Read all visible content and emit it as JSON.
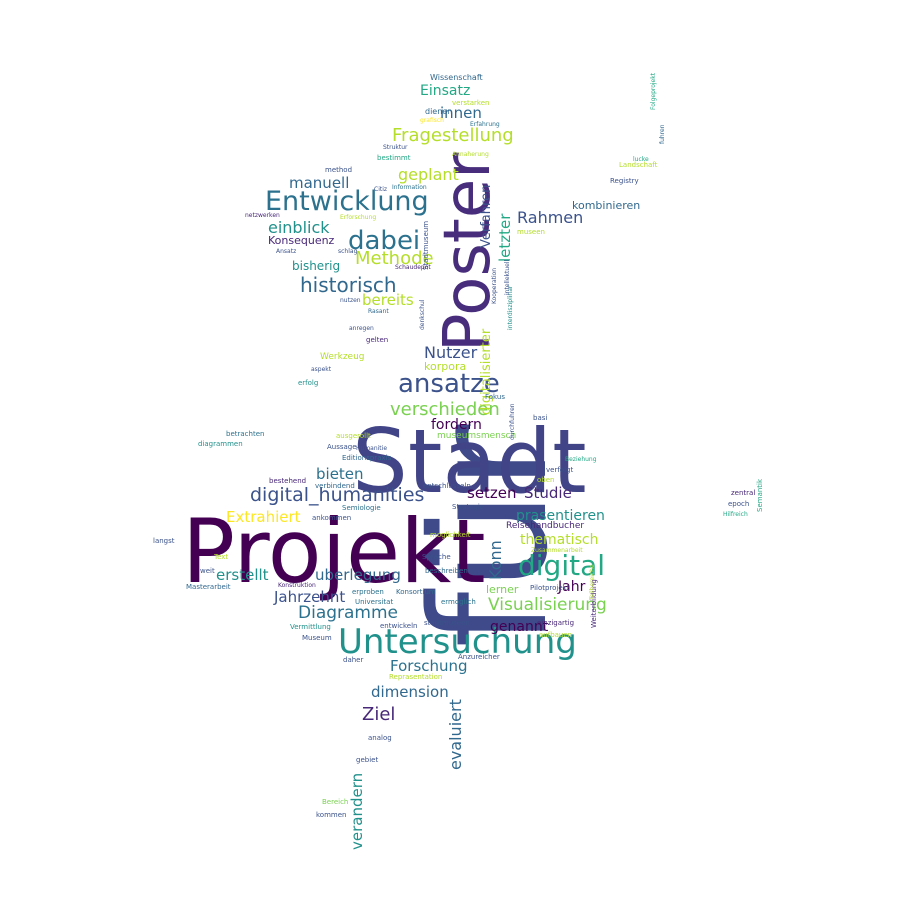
{
  "words": [
    {
      "text": "für",
      "color": "#3e4a89"
    },
    {
      "text": "Stadt",
      "color": "#414487"
    },
    {
      "text": "Projekt",
      "color": "#440154"
    },
    {
      "text": "Poster",
      "color": "#472d7b"
    },
    {
      "text": "Untersuchung",
      "color": "#21918c"
    },
    {
      "text": "Entwicklung",
      "color": "#2c728e"
    },
    {
      "text": "digital",
      "color": "#22a884"
    },
    {
      "text": "ansatze",
      "color": "#3b528b"
    },
    {
      "text": "dabei",
      "color": "#2c728e"
    },
    {
      "text": "historisch",
      "color": "#31688e"
    },
    {
      "text": "digital_humanities",
      "color": "#3b528b"
    },
    {
      "text": "Fragestellung",
      "color": "#b5de2b"
    },
    {
      "text": "verschieden",
      "color": "#7ad151"
    },
    {
      "text": "Visualisierung",
      "color": "#7ad151"
    },
    {
      "text": "Methode",
      "color": "#b5de2b"
    },
    {
      "text": "Diagramme",
      "color": "#2c728e"
    },
    {
      "text": "Rahmen",
      "color": "#3b528b"
    },
    {
      "text": "Nutzer",
      "color": "#3b528b"
    },
    {
      "text": "Jahrzehnt",
      "color": "#3b528b"
    },
    {
      "text": "dimension",
      "color": "#31688e"
    },
    {
      "text": "Forschung",
      "color": "#2c728e"
    },
    {
      "text": "Ziel",
      "color": "#482878"
    },
    {
      "text": "evaluiert",
      "color": "#31688e"
    },
    {
      "text": "verandern",
      "color": "#21918c"
    },
    {
      "text": "manuell",
      "color": "#31688e"
    },
    {
      "text": "geplant",
      "color": "#b5de2b"
    },
    {
      "text": "einblick",
      "color": "#21918c"
    },
    {
      "text": "bereits",
      "color": "#b5de2b"
    },
    {
      "text": "fordern",
      "color": "#440154"
    },
    {
      "text": "bieten",
      "color": "#2c728e"
    },
    {
      "text": "Extrahiert",
      "color": "#fde725"
    },
    {
      "text": "erstellt",
      "color": "#21918c"
    },
    {
      "text": "uberlegung",
      "color": "#31688e"
    },
    {
      "text": "setzen",
      "color": "#440154"
    },
    {
      "text": "Studie",
      "color": "#482878"
    },
    {
      "text": "prasentieren",
      "color": "#21918c"
    },
    {
      "text": "thematisch",
      "color": "#b5de2b"
    },
    {
      "text": "Jahr",
      "color": "#440154"
    },
    {
      "text": "genannt",
      "color": "#440154"
    },
    {
      "text": "Konn",
      "color": "#31688e"
    },
    {
      "text": "lerner",
      "color": "#7ad151"
    },
    {
      "text": "Einsatz",
      "color": "#22a884"
    },
    {
      "text": "innen",
      "color": "#31688e"
    },
    {
      "text": "kombinieren",
      "color": "#31688e"
    },
    {
      "text": "letzter",
      "color": "#22a884"
    },
    {
      "text": "Verfahren",
      "color": "#3b528b"
    },
    {
      "text": "digitalisierter",
      "color": "#b5de2b"
    },
    {
      "text": "Konsequenz",
      "color": "#482878"
    },
    {
      "text": "bisherig",
      "color": "#21918c"
    },
    {
      "text": "korpora",
      "color": "#b5de2b"
    },
    {
      "text": "Werkzeug",
      "color": "#b5de2b"
    },
    {
      "text": "museumsmensch",
      "color": "#7ad151"
    },
    {
      "text": "Reisehandbucher",
      "color": "#482878"
    },
    {
      "text": "Wissenschaft",
      "color": "#31688e"
    },
    {
      "text": "verstarken",
      "color": "#b5de2b"
    },
    {
      "text": "dienen",
      "color": "#31688e"
    },
    {
      "text": "Erfahrung",
      "color": "#2c728e"
    },
    {
      "text": "grafisch",
      "color": "#fde725"
    },
    {
      "text": "Struktur",
      "color": "#3b528b"
    },
    {
      "text": "bestimmt",
      "color": "#22a884"
    },
    {
      "text": "Annaherung",
      "color": "#b5de2b"
    },
    {
      "text": "method",
      "color": "#3b528b"
    },
    {
      "text": "Information",
      "color": "#2c728e"
    },
    {
      "text": "netzwerken",
      "color": "#482878"
    },
    {
      "text": "Erforschung",
      "color": "#b5de2b"
    },
    {
      "text": "Stadtmuseum",
      "color": "#3b528b"
    },
    {
      "text": "Ansatz",
      "color": "#3b528b"
    },
    {
      "text": "schlag",
      "color": "#3b528b"
    },
    {
      "text": "Schaudepot",
      "color": "#482878"
    },
    {
      "text": "nutzen",
      "color": "#3b528b"
    },
    {
      "text": "Rasant",
      "color": "#31688e"
    },
    {
      "text": "anregen",
      "color": "#3b528b"
    },
    {
      "text": "gelten",
      "color": "#482878"
    },
    {
      "text": "aspekt",
      "color": "#3b528b"
    },
    {
      "text": "erfolg",
      "color": "#21918c"
    },
    {
      "text": "betrachten",
      "color": "#2c728e"
    },
    {
      "text": "diagrammen",
      "color": "#21918c"
    },
    {
      "text": "Aussage",
      "color": "#3b528b"
    },
    {
      "text": "ausgerollt",
      "color": "#b5de2b"
    },
    {
      "text": "Editionspraxis",
      "color": "#31688e"
    },
    {
      "text": "Humanitie",
      "color": "#3b528b"
    },
    {
      "text": "verfolgt",
      "color": "#3b528b"
    },
    {
      "text": "oben",
      "color": "#b5de2b"
    },
    {
      "text": "zentral",
      "color": "#482878"
    },
    {
      "text": "epoch",
      "color": "#3b528b"
    },
    {
      "text": "Hilfreich",
      "color": "#22a884"
    },
    {
      "text": "bestehend",
      "color": "#482878"
    },
    {
      "text": "verbindend",
      "color": "#31688e"
    },
    {
      "text": "entschlusseln",
      "color": "#3b528b"
    },
    {
      "text": "ankommen",
      "color": "#3b528b"
    },
    {
      "text": "Semiologie",
      "color": "#2c728e"
    },
    {
      "text": "Strategie",
      "color": "#3b528b"
    },
    {
      "text": "moglichkeit",
      "color": "#b5de2b"
    },
    {
      "text": "Sprache",
      "color": "#3b528b"
    },
    {
      "text": "beschreiben",
      "color": "#31688e"
    },
    {
      "text": "Konstruktion",
      "color": "#482878"
    },
    {
      "text": "erproben",
      "color": "#2c728e"
    },
    {
      "text": "Konsortium",
      "color": "#31688e"
    },
    {
      "text": "Universitat",
      "color": "#2c728e"
    },
    {
      "text": "Masterarbeit",
      "color": "#31688e"
    },
    {
      "text": "Vermittlung",
      "color": "#21918c"
    },
    {
      "text": "entwickeln",
      "color": "#3b528b"
    },
    {
      "text": "Museum",
      "color": "#3b528b"
    },
    {
      "text": "stadtmuseen",
      "color": "#3b528b"
    },
    {
      "text": "ermoglich",
      "color": "#2c728e"
    },
    {
      "text": "Pilotprojekt",
      "color": "#3b528b"
    },
    {
      "text": "einzigartig",
      "color": "#482878"
    },
    {
      "text": "aufbauen",
      "color": "#b5de2b"
    },
    {
      "text": "Anzureicher",
      "color": "#3b528b"
    },
    {
      "text": "Reprasentation",
      "color": "#b5de2b"
    },
    {
      "text": "daher",
      "color": "#3b528b"
    },
    {
      "text": "analog",
      "color": "#3b528b"
    },
    {
      "text": "gebiet",
      "color": "#3b528b"
    },
    {
      "text": "Bereich",
      "color": "#7ad151"
    },
    {
      "text": "kommen",
      "color": "#3b528b"
    },
    {
      "text": "Weiterbildung",
      "color": "#482878"
    },
    {
      "text": "Semantik",
      "color": "#22a884"
    },
    {
      "text": "Landschaft",
      "color": "#b5de2b"
    },
    {
      "text": "Registry",
      "color": "#3b528b"
    },
    {
      "text": "Folgeprojekt",
      "color": "#22a884"
    },
    {
      "text": "Fokus",
      "color": "#31688e"
    },
    {
      "text": "basi",
      "color": "#3b528b"
    },
    {
      "text": "museen",
      "color": "#b5de2b"
    },
    {
      "text": "interdisziplinar",
      "color": "#21918c"
    },
    {
      "text": "Kooperation",
      "color": "#3b528b"
    },
    {
      "text": "intellektuell",
      "color": "#3b528b"
    },
    {
      "text": "durchfuhren",
      "color": "#3b528b"
    },
    {
      "text": "Teilbereiche",
      "color": "#b5de2b"
    },
    {
      "text": "langst",
      "color": "#3b528b"
    },
    {
      "text": "weit",
      "color": "#3b528b"
    },
    {
      "text": "Text",
      "color": "#b5de2b"
    },
    {
      "text": "denkschul",
      "color": "#3b528b"
    },
    {
      "text": "Zusammenarbeit",
      "color": "#b5de2b"
    },
    {
      "text": "Beziehung",
      "color": "#22a884"
    },
    {
      "text": "lucke",
      "color": "#22a884"
    },
    {
      "text": "fuhren",
      "color": "#31688e"
    },
    {
      "text": "Citiz",
      "color": "#3b528b"
    }
  ]
}
